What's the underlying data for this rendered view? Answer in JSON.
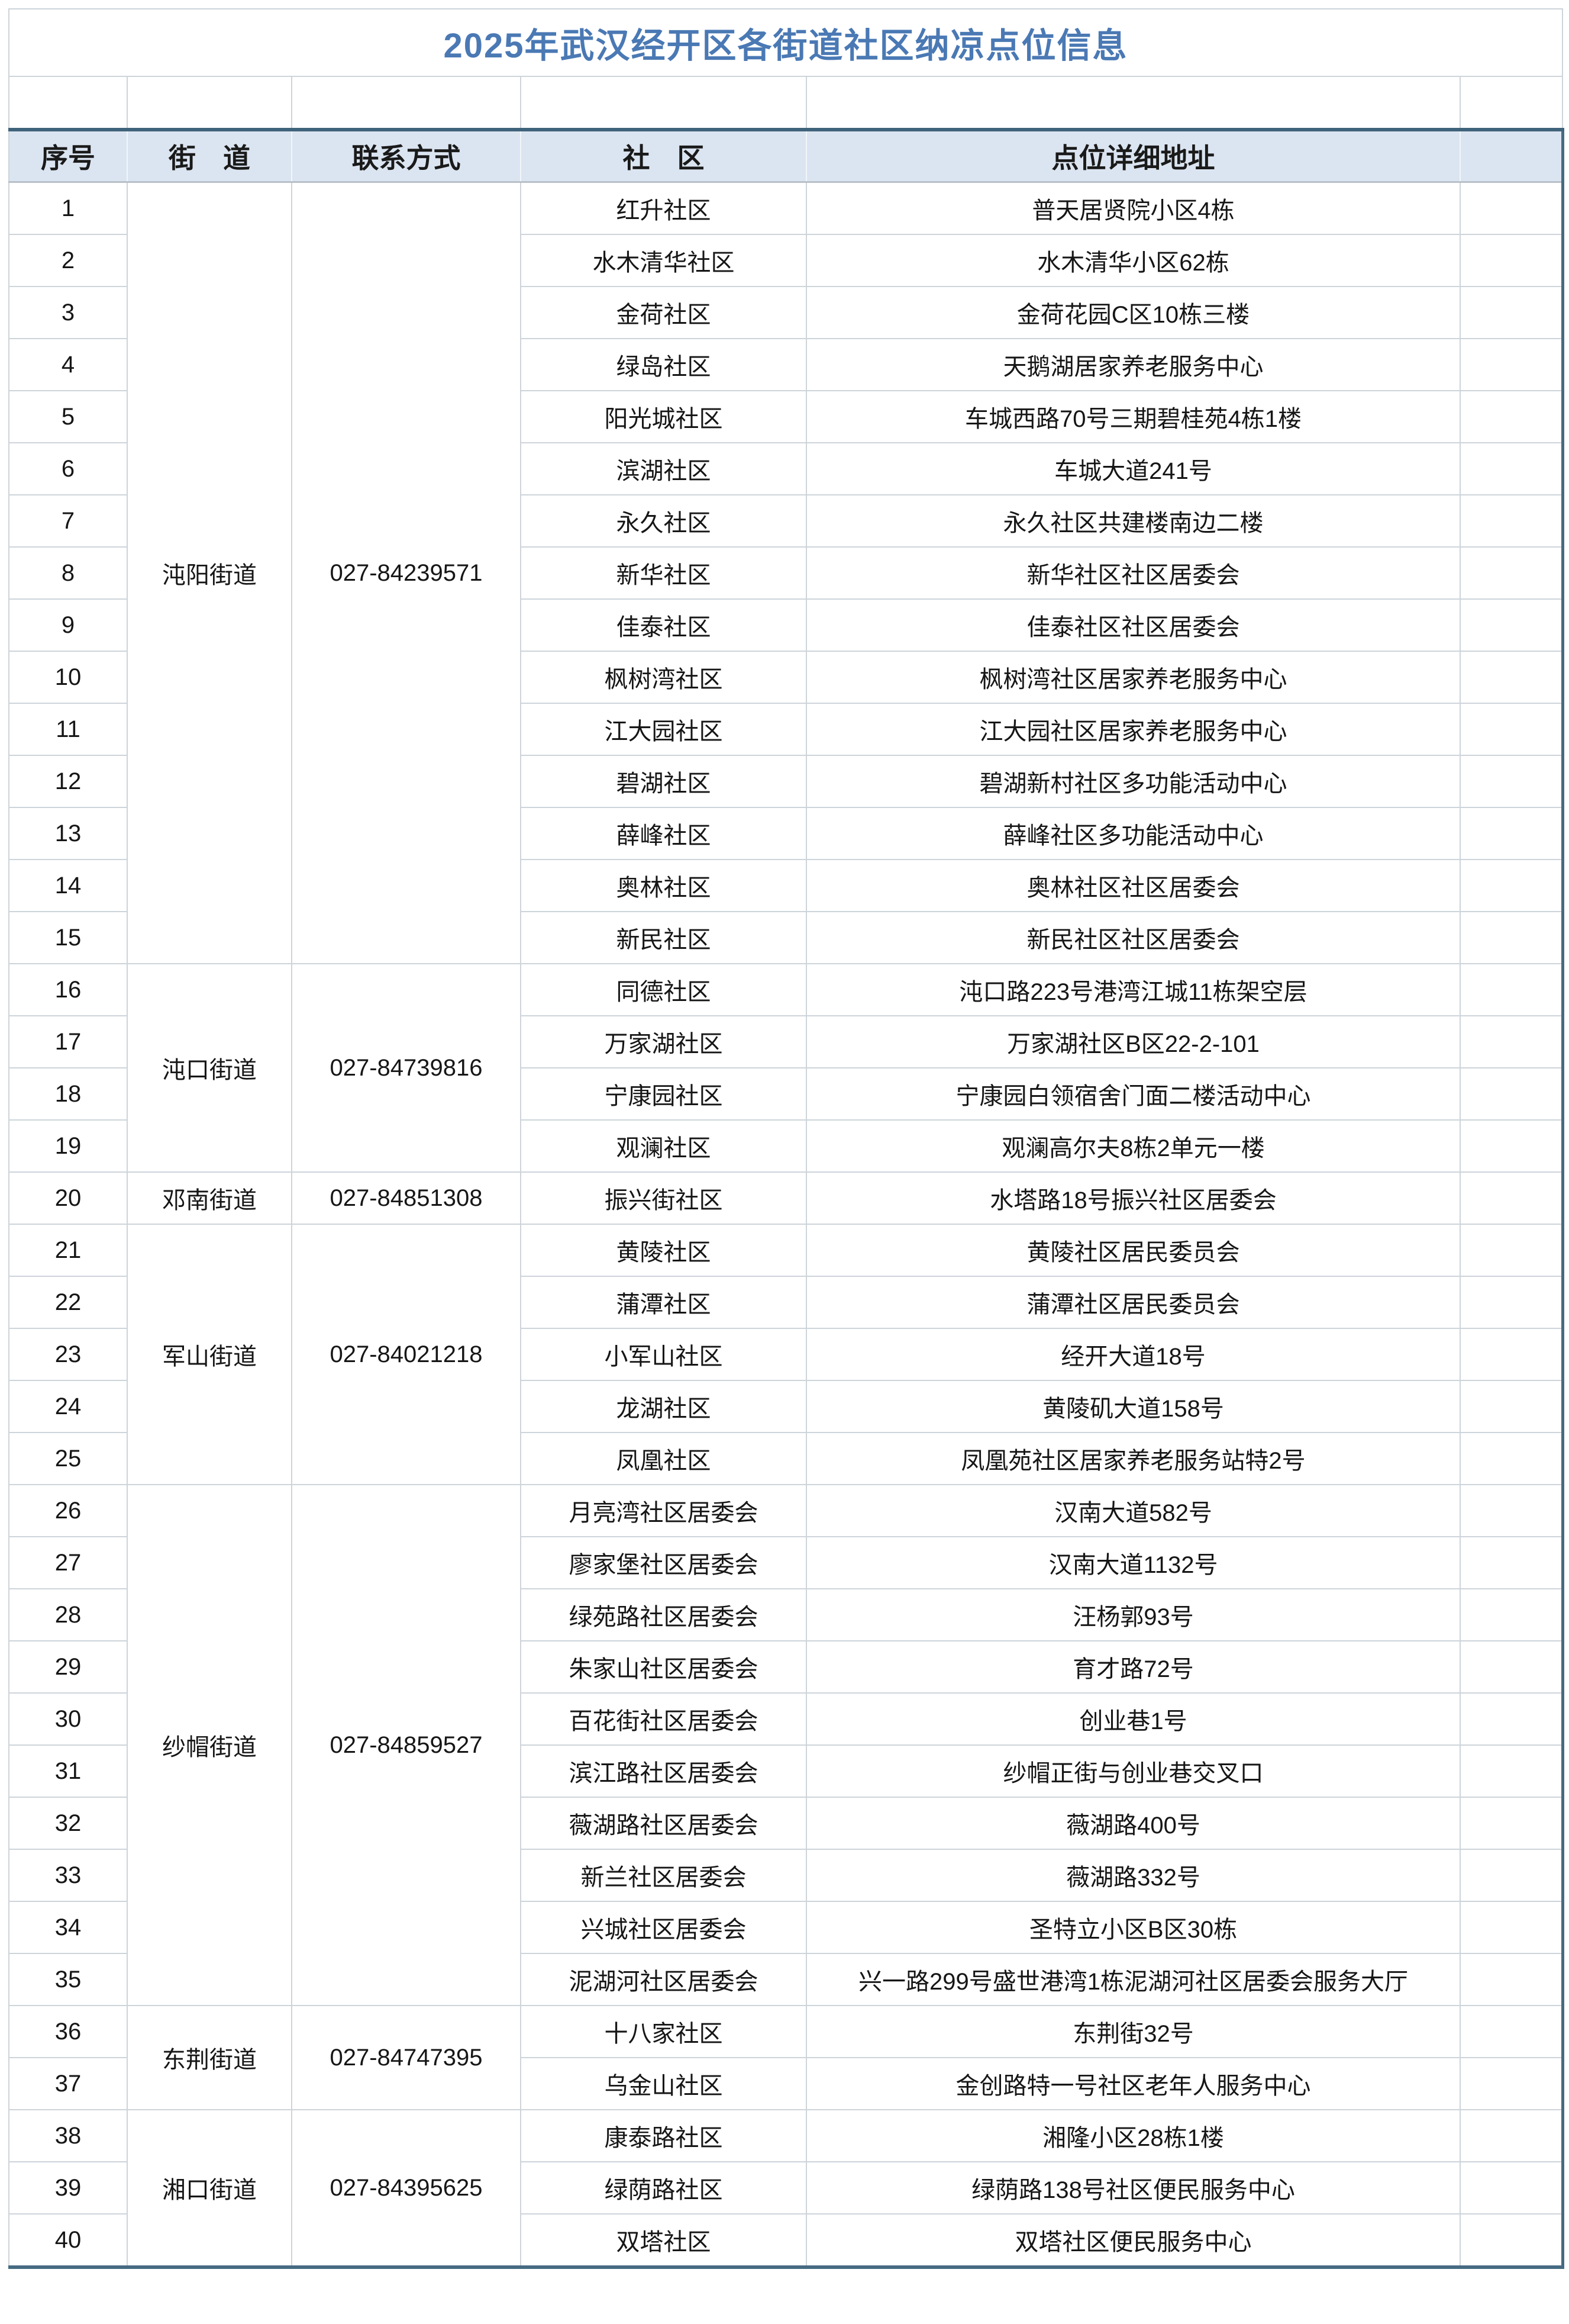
{
  "title": "2025年武汉经开区各街道社区纳凉点位信息",
  "header": {
    "no": "序号",
    "street": "街　道",
    "contact": "联系方式",
    "community": "社　区",
    "address": "点位详细地址",
    "extra": ""
  },
  "colors": {
    "title_text": "#4a79b4",
    "header_bg": "#dbe5f1",
    "outer_dark_border": "#3f637a",
    "grid_line": "#cdd4da",
    "body_text": "#161616"
  },
  "groups": [
    {
      "street": "沌阳街道",
      "phone": "027-84239571",
      "rows": [
        {
          "no": "1",
          "community": "红升社区",
          "address": "普天居贤院小区4栋"
        },
        {
          "no": "2",
          "community": "水木清华社区",
          "address": "水木清华小区62栋"
        },
        {
          "no": "3",
          "community": "金荷社区",
          "address": "金荷花园C区10栋三楼"
        },
        {
          "no": "4",
          "community": "绿岛社区",
          "address": "天鹅湖居家养老服务中心"
        },
        {
          "no": "5",
          "community": "阳光城社区",
          "address": "车城西路70号三期碧桂苑4栋1楼"
        },
        {
          "no": "6",
          "community": "滨湖社区",
          "address": "车城大道241号"
        },
        {
          "no": "7",
          "community": "永久社区",
          "address": "永久社区共建楼南边二楼"
        },
        {
          "no": "8",
          "community": "新华社区",
          "address": "新华社区社区居委会"
        },
        {
          "no": "9",
          "community": "佳泰社区",
          "address": "佳泰社区社区居委会"
        },
        {
          "no": "10",
          "community": "枫树湾社区",
          "address": "枫树湾社区居家养老服务中心"
        },
        {
          "no": "11",
          "community": "江大园社区",
          "address": "江大园社区居家养老服务中心"
        },
        {
          "no": "12",
          "community": "碧湖社区",
          "address": "碧湖新村社区多功能活动中心"
        },
        {
          "no": "13",
          "community": "薛峰社区",
          "address": "薛峰社区多功能活动中心"
        },
        {
          "no": "14",
          "community": "奥林社区",
          "address": "奥林社区社区居委会"
        },
        {
          "no": "15",
          "community": "新民社区",
          "address": "新民社区社区居委会"
        }
      ]
    },
    {
      "street": "沌口街道",
      "phone": "027-84739816",
      "rows": [
        {
          "no": "16",
          "community": "同德社区",
          "address": "沌口路223号港湾江城11栋架空层"
        },
        {
          "no": "17",
          "community": "万家湖社区",
          "address": "万家湖社区B区22-2-101"
        },
        {
          "no": "18",
          "community": "宁康园社区",
          "address": "宁康园白领宿舍门面二楼活动中心"
        },
        {
          "no": "19",
          "community": "观澜社区",
          "address": "观澜高尔夫8栋2单元一楼"
        }
      ]
    },
    {
      "street": "邓南街道",
      "phone": "027-84851308",
      "rows": [
        {
          "no": "20",
          "community": "振兴街社区",
          "address": "水塔路18号振兴社区居委会"
        }
      ]
    },
    {
      "street": "军山街道",
      "phone": "027-84021218",
      "rows": [
        {
          "no": "21",
          "community": "黄陵社区",
          "address": "黄陵社区居民委员会"
        },
        {
          "no": "22",
          "community": "蒲潭社区",
          "address": "蒲潭社区居民委员会"
        },
        {
          "no": "23",
          "community": "小军山社区",
          "address": "经开大道18号"
        },
        {
          "no": "24",
          "community": "龙湖社区",
          "address": "黄陵矶大道158号"
        },
        {
          "no": "25",
          "community": "凤凰社区",
          "address": "凤凰苑社区居家养老服务站特2号"
        }
      ]
    },
    {
      "street": "纱帽街道",
      "phone": "027-84859527",
      "rows": [
        {
          "no": "26",
          "community": "月亮湾社区居委会",
          "address": "汉南大道582号"
        },
        {
          "no": "27",
          "community": "廖家堡社区居委会",
          "address": "汉南大道1132号"
        },
        {
          "no": "28",
          "community": "绿苑路社区居委会",
          "address": "汪杨郭93号"
        },
        {
          "no": "29",
          "community": "朱家山社区居委会",
          "address": "育才路72号"
        },
        {
          "no": "30",
          "community": "百花街社区居委会",
          "address": "创业巷1号"
        },
        {
          "no": "31",
          "community": "滨江路社区居委会",
          "address": "纱帽正街与创业巷交叉口"
        },
        {
          "no": "32",
          "community": "薇湖路社区居委会",
          "address": "薇湖路400号"
        },
        {
          "no": "33",
          "community": "新兰社区居委会",
          "address": "薇湖路332号"
        },
        {
          "no": "34",
          "community": "兴城社区居委会",
          "address": "圣特立小区B区30栋"
        },
        {
          "no": "35",
          "community": "泥湖河社区居委会",
          "address": "兴一路299号盛世港湾1栋泥湖河社区居委会服务大厅"
        }
      ]
    },
    {
      "street": "东荆街道",
      "phone": "027-84747395",
      "rows": [
        {
          "no": "36",
          "community": "十八家社区",
          "address": "东荆街32号"
        },
        {
          "no": "37",
          "community": "乌金山社区",
          "address": "金创路特一号社区老年人服务中心"
        }
      ]
    },
    {
      "street": "湘口街道",
      "phone": "027-84395625",
      "rows": [
        {
          "no": "38",
          "community": "康泰路社区",
          "address": "湘隆小区28栋1楼"
        },
        {
          "no": "39",
          "community": "绿荫路社区",
          "address": "绿荫路138号社区便民服务中心"
        },
        {
          "no": "40",
          "community": "双塔社区",
          "address": "双塔社区便民服务中心"
        }
      ]
    }
  ]
}
